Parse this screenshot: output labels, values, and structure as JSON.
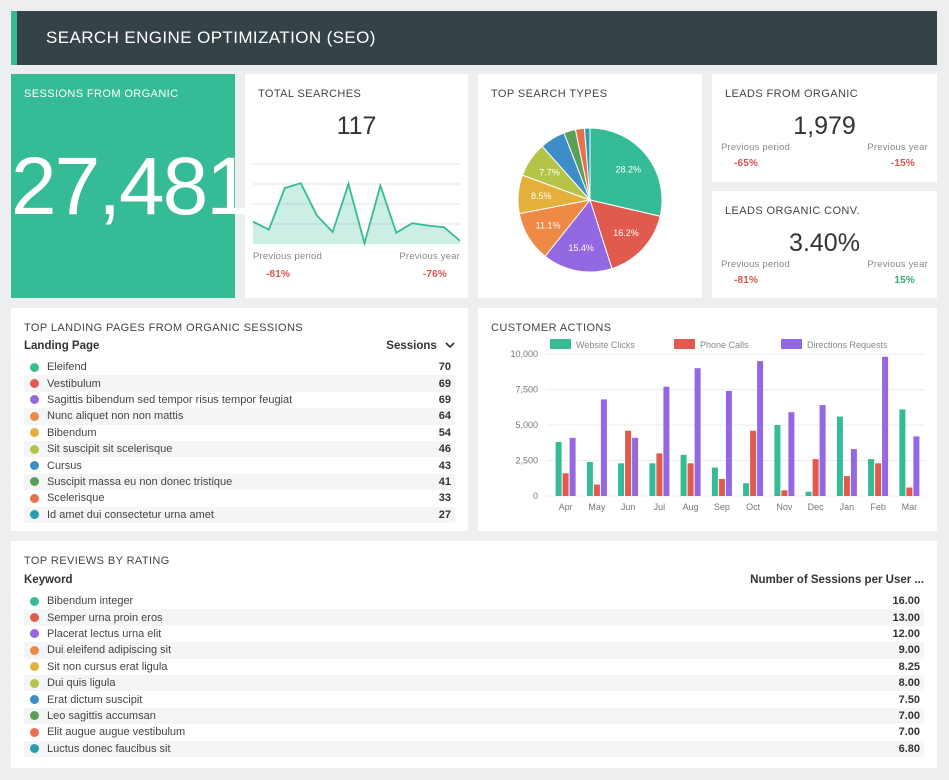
{
  "header": {
    "title": "SEARCH ENGINE OPTIMIZATION (SEO)"
  },
  "colors": {
    "header": "#354349",
    "accent": "#35bc96",
    "negative": "#d9534f",
    "positive": "#3aaa75"
  },
  "sessions": {
    "title": "SESSIONS FROM ORGANIC",
    "value": "27,481"
  },
  "total_searches": {
    "title": "TOTAL SEARCHES",
    "value": "117",
    "prev_period_label": "Previous period",
    "prev_period_value": "-81%",
    "prev_year_label": "Previous year",
    "prev_year_value": "-76%",
    "sparkline": [
      28,
      18,
      70,
      76,
      36,
      15,
      75,
      1,
      73,
      14,
      26,
      23,
      21,
      4
    ]
  },
  "leads": {
    "title": "LEADS FROM ORGANIC",
    "value": "1,979",
    "prev_period_label": "Previous period",
    "prev_period_value": "-65%",
    "prev_year_label": "Previous year",
    "prev_year_value": "-15%"
  },
  "leads_conv": {
    "title": "LEADS ORGANIC CONV.",
    "value": "3.40%",
    "prev_period_label": "Previous period",
    "prev_period_value": "-81%",
    "prev_year_label": "Previous year",
    "prev_year_value": "15%"
  },
  "search_types": {
    "title": "TOP SEARCH TYPES"
  },
  "landing": {
    "title": "TOP LANDING PAGES FROM ORGANIC SESSIONS",
    "col1": "Landing Page",
    "col2": "Sessions",
    "rows": [
      {
        "name": "Eleifend",
        "value": "70",
        "color": "#35bc96"
      },
      {
        "name": "Vestibulum",
        "value": "69",
        "color": "#e05a4e"
      },
      {
        "name": "Sagittis bibendum sed tempor risus tempor feugiat",
        "value": "69",
        "color": "#9468e0"
      },
      {
        "name": "Nunc aliquet non non mattis",
        "value": "64",
        "color": "#ee8a45"
      },
      {
        "name": "Bibendum",
        "value": "54",
        "color": "#e3b03c"
      },
      {
        "name": "Sit suscipit sit scelerisque",
        "value": "46",
        "color": "#b5c447"
      },
      {
        "name": "Cursus",
        "value": "43",
        "color": "#3d8ec8"
      },
      {
        "name": "Suscipit massa eu non donec tristique",
        "value": "41",
        "color": "#5a9e5a"
      },
      {
        "name": "Scelerisque",
        "value": "33",
        "color": "#e8704c"
      },
      {
        "name": "Id amet dui consectetur urna amet",
        "value": "27",
        "color": "#2a9db0"
      }
    ]
  },
  "reviews": {
    "title": "TOP REVIEWS BY RATING",
    "col1": "Keyword",
    "col2": "Number of Sessions per User ...",
    "rows": [
      {
        "name": "Bibendum integer",
        "value": "16.00",
        "color": "#35bc96"
      },
      {
        "name": "Semper urna proin eros",
        "value": "13.00",
        "color": "#e05a4e"
      },
      {
        "name": "Placerat lectus urna elit",
        "value": "12.00",
        "color": "#9468e0"
      },
      {
        "name": "Dui eleifend adipiscing sit",
        "value": "9.00",
        "color": "#ee8a45"
      },
      {
        "name": "Sit non cursus erat ligula",
        "value": "8.25",
        "color": "#e3b03c"
      },
      {
        "name": "Dui quis ligula",
        "value": "8.00",
        "color": "#b5c447"
      },
      {
        "name": "Erat dictum suscipit",
        "value": "7.50",
        "color": "#3d8ec8"
      },
      {
        "name": "Leo sagittis accumsan",
        "value": "7.00",
        "color": "#5a9e5a"
      },
      {
        "name": "Elit augue augue vestibulum",
        "value": "7.00",
        "color": "#e8704c"
      },
      {
        "name": "Luctus donec faucibus sit",
        "value": "6.80",
        "color": "#2a9db0"
      }
    ]
  },
  "customer_actions": {
    "title": "CUSTOMER ACTIONS"
  },
  "chart_data": [
    {
      "type": "pie",
      "title": "TOP SEARCH TYPES",
      "values": [
        28.2,
        16.2,
        15.4,
        11.1,
        8.5,
        7.7,
        5.6,
        2.6,
        2.0,
        1.2
      ],
      "labels": [
        "28.2%",
        "16.2%",
        "15.4%",
        "11.1%",
        "8.5%",
        "7.7%",
        "",
        "",
        "",
        ""
      ],
      "colors": [
        "#35bc96",
        "#e05a4e",
        "#9468e0",
        "#ee8a45",
        "#e3b03c",
        "#b5c447",
        "#3d8ec8",
        "#5a9e5a",
        "#e8704c",
        "#2a9db0"
      ]
    },
    {
      "type": "bar",
      "title": "CUSTOMER ACTIONS",
      "categories": [
        "Apr",
        "May",
        "Jun",
        "Jul",
        "Aug",
        "Sep",
        "Oct",
        "Nov",
        "Dec",
        "Jan",
        "Feb",
        "Mar"
      ],
      "series": [
        {
          "name": "Website Clicks",
          "color": "#35bc96",
          "values": [
            3800,
            2400,
            2300,
            2300,
            2900,
            2000,
            900,
            5000,
            300,
            5600,
            2600,
            6100
          ]
        },
        {
          "name": "Phone Calls",
          "color": "#e05a4e",
          "values": [
            1600,
            800,
            4600,
            3000,
            2300,
            1200,
            4600,
            400,
            2600,
            1400,
            2300,
            600
          ]
        },
        {
          "name": "Directions Requests",
          "color": "#9468e0",
          "values": [
            4100,
            6800,
            4100,
            7700,
            9000,
            7400,
            9500,
            5900,
            6400,
            3300,
            9800,
            4200
          ]
        }
      ],
      "yticks": [
        "10,000",
        "7,500",
        "5,000",
        "2,500",
        "0"
      ],
      "ylim": [
        0,
        10000
      ],
      "grid": true,
      "legend": "top"
    }
  ]
}
